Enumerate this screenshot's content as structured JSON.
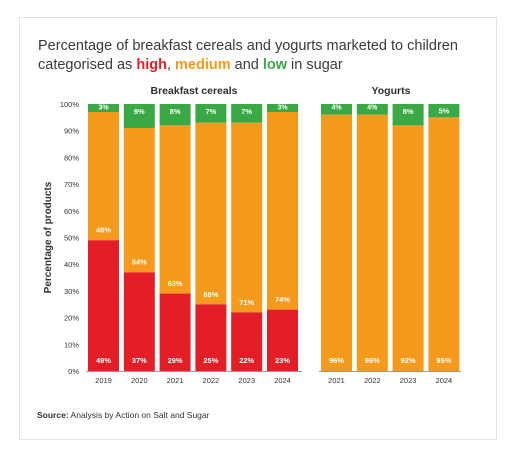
{
  "title": {
    "prefix": "Percentage of breakfast cereals and yogurts marketed to children categorised as ",
    "high": "high",
    "sep": ", ",
    "medium": "medium",
    "and": " and ",
    "low": "low",
    "suffix": " in sugar"
  },
  "source": {
    "label": "Source:",
    "text": " Analysis by Action on Salt and Sugar"
  },
  "colors": {
    "high": "#e41e26",
    "medium": "#f59a1c",
    "low": "#3aa845",
    "high_text": "#e41e26",
    "medium_text": "#f59a1c",
    "low_text": "#3aa845"
  },
  "chart_data": [
    {
      "type": "bar",
      "stacked": true,
      "title": "Breakfast cereals",
      "ylabel": "Percentage of products",
      "ylim": [
        0,
        100
      ],
      "yticks": [
        "0%",
        "10%",
        "20%",
        "30%",
        "40%",
        "50%",
        "60%",
        "70%",
        "80%",
        "90%",
        "100%"
      ],
      "categories": [
        "2019",
        "2020",
        "2021",
        "2022",
        "2023",
        "2024"
      ],
      "series": [
        {
          "name": "high",
          "values": [
            49,
            37,
            29,
            25,
            22,
            23
          ],
          "labels": [
            "49%",
            "37%",
            "29%",
            "25%",
            "22%",
            "23%"
          ]
        },
        {
          "name": "medium",
          "values": [
            48,
            54,
            63,
            68,
            71,
            74
          ],
          "labels": [
            "48%",
            "54%",
            "63%",
            "68%",
            "71%",
            "74%"
          ]
        },
        {
          "name": "low",
          "values": [
            3,
            9,
            8,
            7,
            7,
            3
          ],
          "labels": [
            "3%",
            "9%",
            "8%",
            "7%",
            "7%",
            "3%"
          ]
        }
      ]
    },
    {
      "type": "bar",
      "stacked": true,
      "title": "Yogurts",
      "ylim": [
        0,
        100
      ],
      "categories": [
        "2021",
        "2022",
        "2023",
        "2024"
      ],
      "series": [
        {
          "name": "medium",
          "values": [
            96,
            96,
            92,
            95
          ],
          "labels": [
            "96%",
            "96%",
            "92%",
            "95%"
          ]
        },
        {
          "name": "low",
          "values": [
            4,
            4,
            8,
            5
          ],
          "labels": [
            "4%",
            "4%",
            "8%",
            "5%"
          ]
        }
      ]
    }
  ]
}
